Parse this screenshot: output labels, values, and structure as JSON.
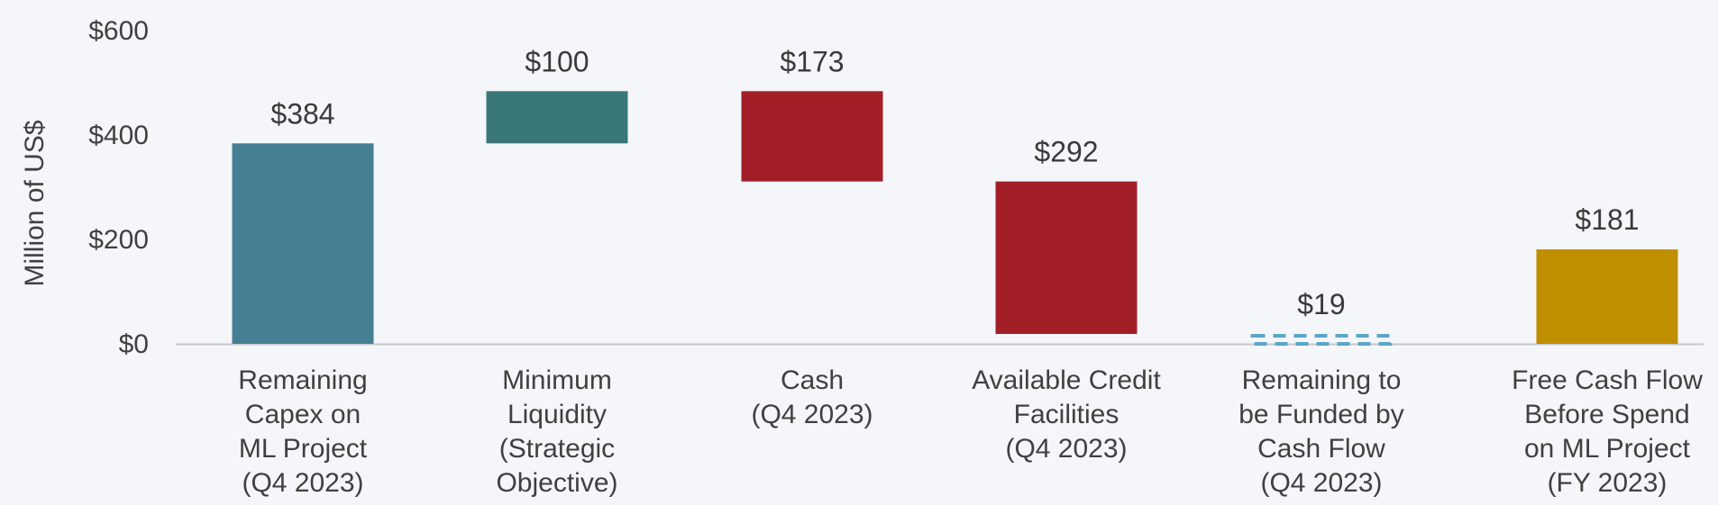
{
  "chart_data": {
    "type": "waterfall",
    "ylabel": "Million of US$",
    "ylim": [
      0,
      600
    ],
    "yticks": [
      {
        "value": 0,
        "label": "$0"
      },
      {
        "value": 200,
        "label": "$200"
      },
      {
        "value": 400,
        "label": "$400"
      },
      {
        "value": 600,
        "label": "$600"
      }
    ],
    "gridlines": false,
    "bars": [
      {
        "category": [
          "Remaining",
          "Capex on",
          "ML Project",
          "(Q4 2023)"
        ],
        "value": 384,
        "base": 0,
        "top": 384,
        "label": "$384",
        "color": "#467f93",
        "dashed": false
      },
      {
        "category": [
          "Minimum",
          "Liquidity",
          "(Strategic",
          "Objective)"
        ],
        "value": 100,
        "base": 384,
        "top": 484,
        "label": "$100",
        "color": "#3a7878",
        "dashed": false
      },
      {
        "category": [
          "Cash",
          "(Q4 2023)"
        ],
        "value": 173,
        "base": 311,
        "top": 484,
        "label": "$173",
        "color": "#a21f28",
        "dashed": false
      },
      {
        "category": [
          "Available Credit",
          "Facilities",
          "(Q4 2023)"
        ],
        "value": 292,
        "base": 19,
        "top": 311,
        "label": "$292",
        "color": "#a21f28",
        "dashed": false
      },
      {
        "category": [
          "Remaining to",
          "be Funded by",
          "Cash Flow",
          "(Q4 2023)"
        ],
        "value": 19,
        "base": 0,
        "top": 19,
        "label": "$19",
        "color": "#5aa6c8",
        "dashed": true
      },
      {
        "category": [
          "Free Cash Flow",
          "Before Spend",
          "on ML Project",
          "(FY 2023)"
        ],
        "value": 181,
        "base": 0,
        "top": 181,
        "label": "$181",
        "color": "#c08f00",
        "dashed": false
      }
    ]
  }
}
